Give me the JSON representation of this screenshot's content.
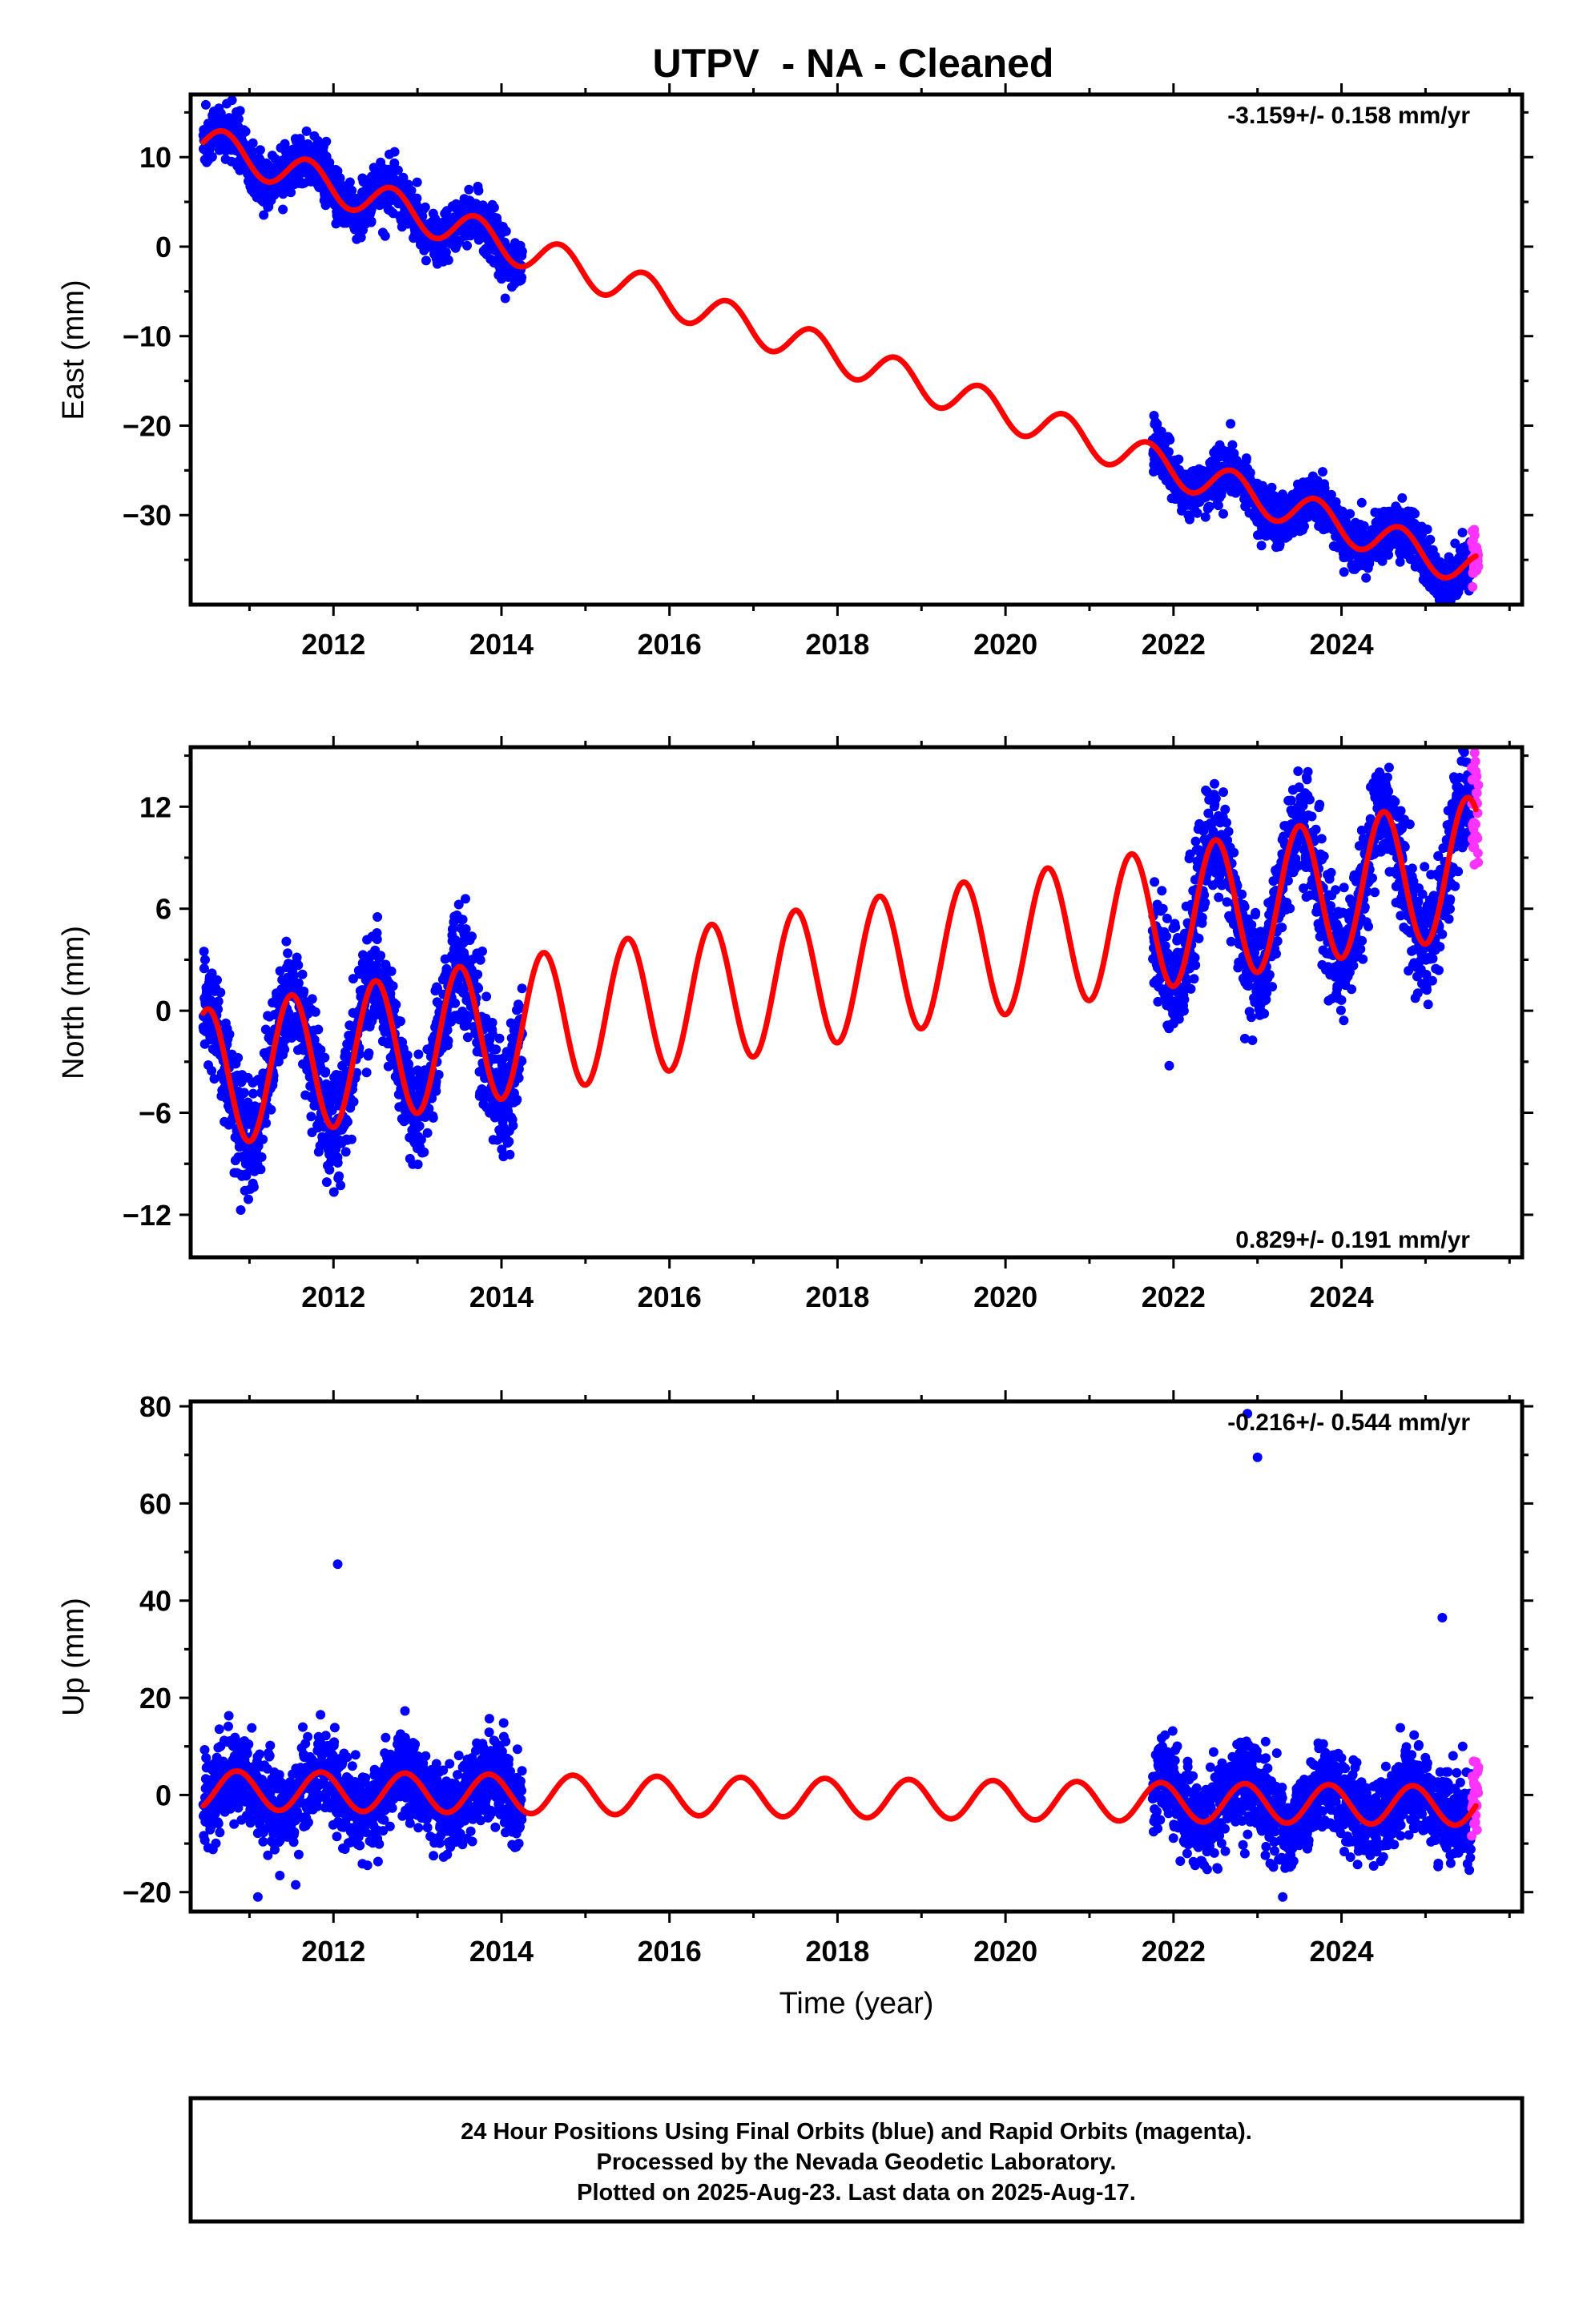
{
  "chart_data": {
    "type": "scatter",
    "title": "UTPV  - NA - Cleaned",
    "xlabel": "Time (year)",
    "x_ticks": [
      2012,
      2014,
      2016,
      2018,
      2020,
      2022,
      2024
    ],
    "xlim": [
      2010.3,
      2026.15
    ],
    "colors": {
      "final": "#0000ff",
      "rapid": "#ff33ff",
      "model": "#ff0000"
    },
    "data_gaps": [
      [
        2014.25,
        2021.75
      ]
    ],
    "panels": [
      {
        "name": "east",
        "ylabel": "East (mm)",
        "ylim": [
          -40,
          17
        ],
        "y_ticks": [
          10,
          0,
          -10,
          -20,
          -30
        ],
        "y_tick_labels": [
          "10",
          "0",
          "−10",
          "−20",
          "−30"
        ],
        "rate_label": "-3.159+/- 0.158 mm/yr",
        "rate_position": "top-right",
        "model": {
          "type": "linear+annual",
          "ref_year": 2010.5,
          "intercept": 11.5,
          "slope": -3.159,
          "amplitude": 2.0,
          "phase_peak_year": 2010.7
        },
        "model_range": [
          2010.45,
          2025.6
        ],
        "scatter_noise": 1.4,
        "final_range": [
          2010.45,
          2025.55
        ],
        "rapid_range": [
          2025.55,
          2025.63
        ]
      },
      {
        "name": "north",
        "ylabel": "North (mm)",
        "ylim": [
          -14.5,
          15.5
        ],
        "y_ticks": [
          12,
          6,
          0,
          -6,
          -12
        ],
        "y_tick_labels": [
          "12",
          "6",
          "0",
          "−6",
          "−12"
        ],
        "rate_label": "0.829+/- 0.191 mm/yr",
        "rate_position": "bottom-right",
        "model": {
          "type": "linear+annual",
          "ref_year": 2010.5,
          "intercept": -4.0,
          "slope": 0.829,
          "amplitude": 4.1,
          "phase_peak_year": 2011.5
        },
        "model_range": [
          2010.45,
          2025.6
        ],
        "scatter_noise": 1.6,
        "final_range": [
          2010.45,
          2025.55
        ],
        "rapid_range": [
          2025.55,
          2025.63
        ]
      },
      {
        "name": "up",
        "ylabel": "Up (mm)",
        "ylim": [
          -24,
          81
        ],
        "y_ticks": [
          80,
          60,
          40,
          20,
          0,
          -20
        ],
        "y_tick_labels": [
          "80",
          "60",
          "40",
          "20",
          "0",
          "−20"
        ],
        "rate_label": "-0.216+/- 0.544 mm/yr",
        "rate_position": "top-right",
        "model": {
          "type": "linear+annual",
          "ref_year": 2010.5,
          "intercept": 1.0,
          "slope": -0.216,
          "amplitude": 4.0,
          "phase_peak_year": 2010.85
        },
        "model_range": [
          2010.45,
          2025.6
        ],
        "scatter_noise": 4.5,
        "final_range": [
          2010.45,
          2025.55
        ],
        "rapid_range": [
          2025.55,
          2025.63
        ],
        "outliers": [
          {
            "x": 2012.05,
            "y": 47.5
          },
          {
            "x": 2022.88,
            "y": 78.5
          },
          {
            "x": 2023.0,
            "y": 69.5
          },
          {
            "x": 2025.2,
            "y": 36.5
          },
          {
            "x": 2011.1,
            "y": -21.0
          },
          {
            "x": 2011.55,
            "y": -18.5
          },
          {
            "x": 2023.3,
            "y": -21.0
          }
        ]
      }
    ]
  },
  "footer": {
    "line1": "24 Hour Positions Using Final Orbits (blue) and Rapid Orbits (magenta).",
    "line2": "Processed by the Nevada Geodetic Laboratory.",
    "line3": "Plotted on 2025-Aug-23. Last data on 2025-Aug-17."
  }
}
